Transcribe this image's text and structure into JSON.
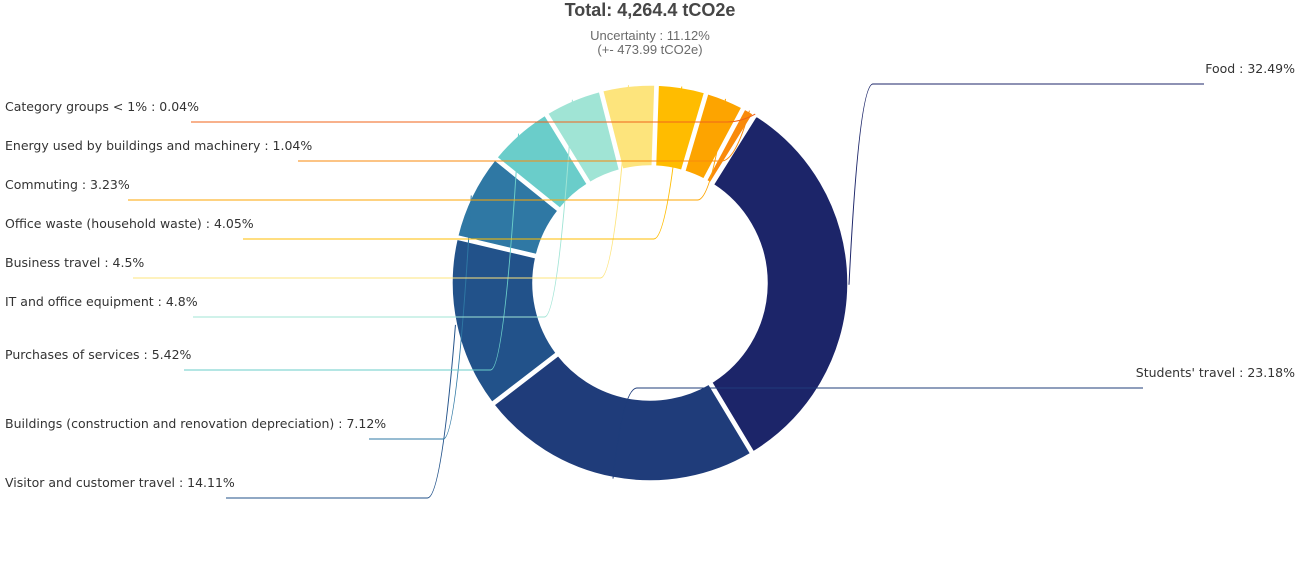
{
  "header": {
    "title": "Total: 4,264.4 tCO2e",
    "uncertainty": "Uncertainty : 11.12%",
    "uncertainty_abs": "(+- 473.99 tCO2e)"
  },
  "chart_data": {
    "type": "pie",
    "variant": "donut",
    "title": "Total: 4,264.4 tCO2e",
    "unit": "%",
    "slices": [
      {
        "label": "Food",
        "value": 32.49,
        "color": "#1c2569",
        "text": "Food : 32.49%"
      },
      {
        "label": "Students' travel",
        "value": 23.18,
        "color": "#1f3c7a",
        "text": "Students' travel : 23.18%"
      },
      {
        "label": "Visitor and customer travel",
        "value": 14.11,
        "color": "#22528a",
        "text": "Visitor and customer travel : 14.11%"
      },
      {
        "label": "Buildings (construction and renovation depreciation)",
        "value": 7.12,
        "color": "#2f78a4",
        "text": "Buildings (construction and renovation depreciation) : 7.12%"
      },
      {
        "label": "Purchases of services",
        "value": 5.42,
        "color": "#6acdca",
        "text": "Purchases of services : 5.42%"
      },
      {
        "label": "IT and office equipment",
        "value": 4.8,
        "color": "#a0e4d5",
        "text": "IT and office equipment : 4.8%"
      },
      {
        "label": "Business travel",
        "value": 4.5,
        "color": "#fde47c",
        "text": "Business travel : 4.5%"
      },
      {
        "label": "Office waste (household waste)",
        "value": 4.05,
        "color": "#ffbc00",
        "text": "Office waste (household waste) : 4.05%"
      },
      {
        "label": "Commuting",
        "value": 3.23,
        "color": "#fda400",
        "text": "Commuting : 3.23%"
      },
      {
        "label": "Energy used by buildings and machinery",
        "value": 1.04,
        "color": "#f98a0b",
        "text": "Energy used by buildings and machinery : 1.04%"
      },
      {
        "label": "Category groups < 1%",
        "value": 0.04,
        "color": "#f0631a",
        "text": "Category groups < 1% : 0.04%"
      }
    ]
  }
}
